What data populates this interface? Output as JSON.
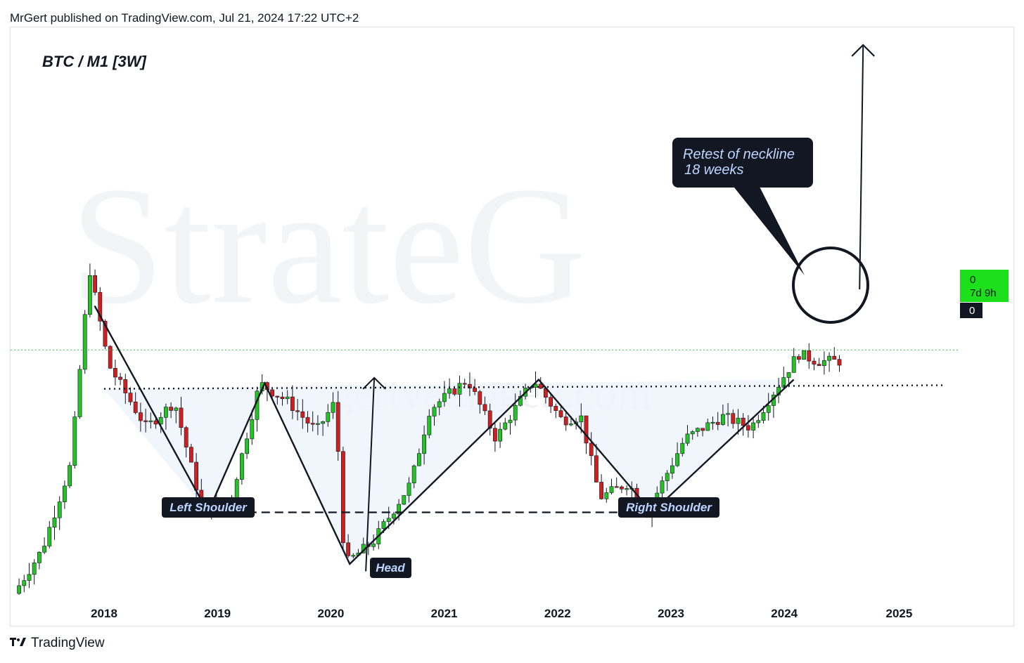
{
  "header": {
    "publish_line": "MrGert published on TradingView.com, Jul 21, 2024 17:22 UTC+2"
  },
  "symbol": "BTC / M1 [3W]",
  "watermark": {
    "large": "StrateG",
    "url": "gertvanlagen.com"
  },
  "annotations": {
    "left_shoulder": "Left Shoulder",
    "head": "Head",
    "right_shoulder": "Right Shoulder",
    "callout_line1": "Retest of neckline",
    "callout_line2": "18 weeks"
  },
  "price_scale": {
    "green_value": "0",
    "countdown": "7d 9h",
    "black_value": "0"
  },
  "footer": {
    "brand": "TradingView",
    "logo_icon": "tradingview-logo-icon"
  },
  "colors": {
    "up": "#22c322",
    "down": "#d11f1f",
    "pattern_fill": "#eef3fb",
    "green_label": "#1be01b",
    "label_bg": "#131722",
    "callout_text": "#bcd4ff"
  },
  "chart_data": {
    "type": "candlestick",
    "title": "BTC / M1 [3W]",
    "pattern": "inverse head and shoulders",
    "x_tick_labels": [
      "2018",
      "2019",
      "2020",
      "2021",
      "2022",
      "2023",
      "2024",
      "2025"
    ],
    "y_axis_labels_shown": false,
    "legend": "none",
    "grid": false,
    "swing_points": [
      {
        "date": "2017-12",
        "role": "high",
        "rel_level": 0.88
      },
      {
        "date": "2018-12",
        "role": "left shoulder low",
        "rel_level": 0.22
      },
      {
        "date": "2019-06",
        "role": "neckline high",
        "rel_level": 0.57
      },
      {
        "date": "2020-03",
        "role": "head low",
        "rel_level": 0.08
      },
      {
        "date": "2021-04",
        "role": "neckline high",
        "rel_level": 0.58
      },
      {
        "date": "2021-11",
        "role": "neckline high",
        "rel_level": 0.58
      },
      {
        "date": "2022-11",
        "role": "right shoulder low",
        "rel_level": 0.22
      },
      {
        "date": "2024-03",
        "role": "breakout high",
        "rel_level": 0.65
      },
      {
        "date": "2024-07",
        "role": "last close",
        "rel_level": 0.63
      }
    ],
    "neckline": {
      "from": "2018-01",
      "to": "2025-06",
      "rel_level_start": 0.555,
      "rel_level_end": 0.58,
      "style": "dotted"
    },
    "shoulder_line": {
      "from": "2018-12",
      "to": "2022-12",
      "rel_level": 0.22,
      "style": "dashed"
    },
    "current_price_line": {
      "rel_level": 0.63,
      "style": "dotted-green"
    },
    "target_arrow": {
      "from": "2024-08",
      "direction": "up"
    },
    "measured_move_arrow": {
      "at": "2020-05",
      "from": "head low",
      "to": "neckline"
    }
  }
}
